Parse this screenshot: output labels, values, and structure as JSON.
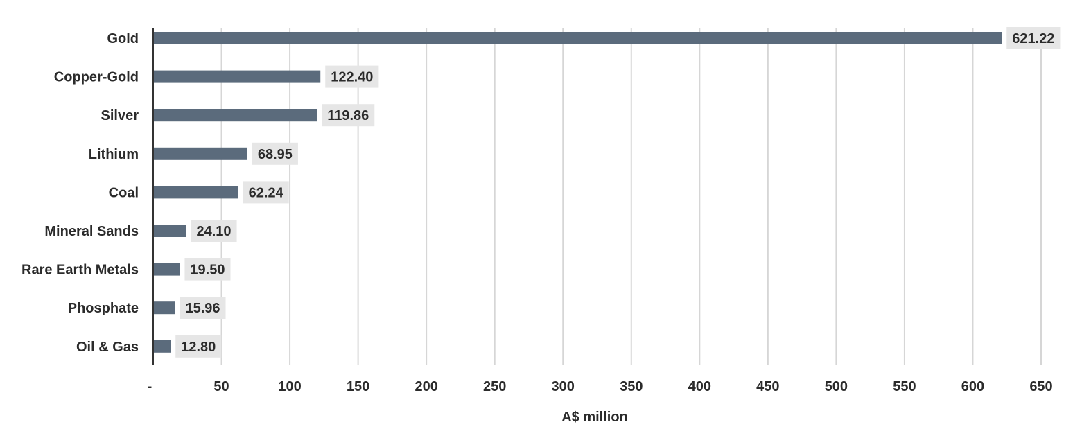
{
  "chart_data": {
    "type": "bar",
    "orientation": "horizontal",
    "categories": [
      "Gold",
      "Copper-Gold",
      "Silver",
      "Lithium",
      "Coal",
      "Mineral Sands",
      "Rare Earth Metals",
      "Phosphate",
      "Oil & Gas"
    ],
    "values": [
      621.22,
      122.4,
      119.86,
      68.95,
      62.24,
      24.1,
      19.5,
      15.96,
      12.8
    ],
    "data_labels": [
      "621.22",
      "122.40",
      "119.86",
      "68.95",
      "62.24",
      "24.10",
      "19.50",
      "15.96",
      "12.80"
    ],
    "xlabel": "A$ million",
    "xlim": [
      0,
      650
    ],
    "x_ticks": [
      0,
      50,
      100,
      150,
      200,
      250,
      300,
      350,
      400,
      450,
      500,
      550,
      600,
      650
    ],
    "x_tick_labels": [
      "-",
      "50",
      "100",
      "150",
      "200",
      "250",
      "300",
      "350",
      "400",
      "450",
      "500",
      "550",
      "600",
      "650"
    ],
    "grid": "vertical",
    "colors": {
      "bar": "#5b6b7c",
      "grid": "#d6d6d6",
      "label_background": "#e6e6e6",
      "text": "#2b2b2b"
    }
  }
}
